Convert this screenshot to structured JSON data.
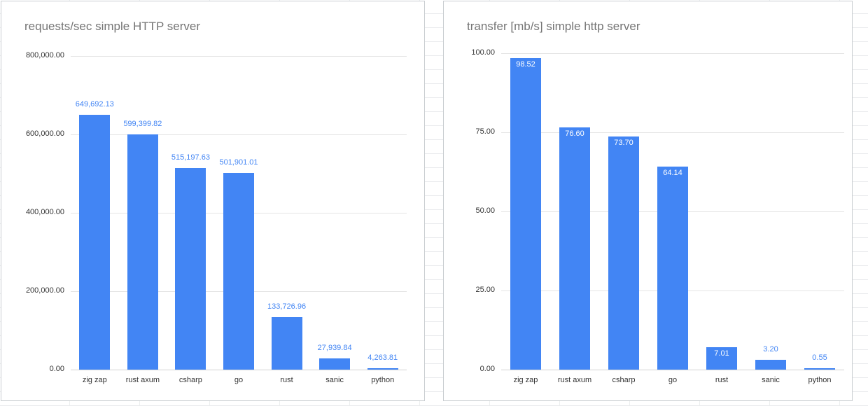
{
  "chart_data": [
    {
      "type": "bar",
      "title": "requests/sec simple HTTP server",
      "categories": [
        "zig zap",
        "rust axum",
        "csharp",
        "go",
        "rust",
        "sanic",
        "python"
      ],
      "values": [
        649692.13,
        599399.82,
        515197.63,
        501901.01,
        133726.96,
        27939.84,
        4263.81
      ],
      "value_labels": [
        "649,692.13",
        "599,399.82",
        "515,197.63",
        "501,901.01",
        "133,726.96",
        "27,939.84",
        "4,263.81"
      ],
      "ylim": [
        0,
        800000
      ],
      "yticks": [
        0,
        200000,
        400000,
        600000,
        800000
      ],
      "ytick_labels": [
        "0.00",
        "200,000.00",
        "400,000.00",
        "600,000.00",
        "800,000.00"
      ],
      "grid": true,
      "legend": "none",
      "bar_color": "#4285f4",
      "label_color": "#4285f4",
      "labels_inside": [
        false,
        false,
        false,
        false,
        false,
        false,
        false
      ]
    },
    {
      "type": "bar",
      "title": "transfer [mb/s] simple http server",
      "categories": [
        "zig zap",
        "rust axum",
        "csharp",
        "go",
        "rust",
        "sanic",
        "python"
      ],
      "values": [
        98.52,
        76.6,
        73.7,
        64.14,
        7.01,
        3.2,
        0.55
      ],
      "value_labels": [
        "98.52",
        "76.60",
        "73.70",
        "64.14",
        "7.01",
        "3.20",
        "0.55"
      ],
      "ylim": [
        0,
        100
      ],
      "yticks": [
        0,
        25,
        50,
        75,
        100
      ],
      "ytick_labels": [
        "0.00",
        "25.00",
        "50.00",
        "75.00",
        "100.00"
      ],
      "grid": true,
      "legend": "none",
      "bar_color": "#4285f4",
      "label_color": "#4285f4",
      "labels_inside": [
        true,
        true,
        true,
        true,
        true,
        false,
        false
      ]
    }
  ]
}
